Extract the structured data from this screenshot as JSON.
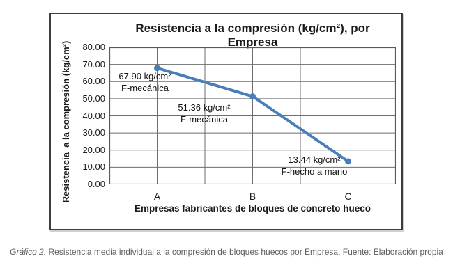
{
  "chart_data": {
    "type": "line",
    "title": "Resistencia a la compresión (kg/cm²), por Empresa",
    "xlabel": "Empresas fabricantes de bloques de concreto hueco",
    "ylabel": "Resistencia  a la compresión (kg/cm²)",
    "categories": [
      "A",
      "B",
      "C"
    ],
    "values": [
      67.9,
      51.36,
      13.44
    ],
    "ylim": [
      0,
      80
    ],
    "ytick_step": 10,
    "ytick_labels": [
      "80.00",
      "70.00",
      "60.00",
      "50.00",
      "40.00",
      "30.00",
      "20.00",
      "10.00",
      "0.00"
    ],
    "grid": true,
    "legend": "none",
    "series_name": "Resistencia media individual",
    "series_color": "#4a7ebb",
    "grid_color": "#6e6e6e",
    "axis_color": "#595959",
    "annotations": [
      {
        "value_text": "67.90 kg/cm²",
        "name_text": "F-mecánica"
      },
      {
        "value_text": "51.36 kg/cm²",
        "name_text": "F-mecánica"
      },
      {
        "value_text": "13.44 kg/cm²",
        "name_text": "F-hecho a mano"
      }
    ]
  },
  "figure": {
    "caption_italic": "Gráfico 2.",
    "caption_rest": " Resistencia media individual a la compresión de bloques huecos por Empresa. Fuente: Elaboración propia"
  }
}
